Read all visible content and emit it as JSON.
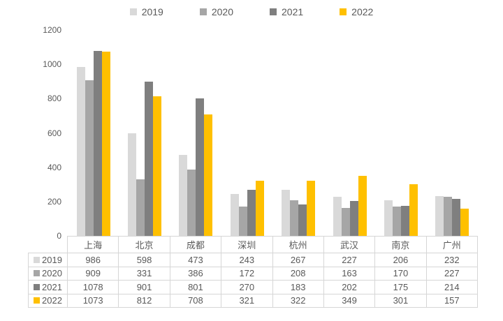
{
  "chart_data": {
    "type": "bar",
    "title": "",
    "categories": [
      "上海",
      "北京",
      "成都",
      "深圳",
      "杭州",
      "武汉",
      "南京",
      "广州"
    ],
    "series": [
      {
        "name": "2019",
        "color": "#d9d9d9",
        "values": [
          986,
          598,
          473,
          243,
          267,
          227,
          206,
          232
        ]
      },
      {
        "name": "2020",
        "color": "#a6a6a6",
        "values": [
          909,
          331,
          386,
          172,
          208,
          163,
          170,
          227
        ]
      },
      {
        "name": "2021",
        "color": "#7f7f7f",
        "values": [
          1078,
          901,
          801,
          270,
          183,
          202,
          175,
          214
        ]
      },
      {
        "name": "2022",
        "color": "#ffc000",
        "values": [
          1073,
          812,
          708,
          321,
          322,
          349,
          301,
          157
        ]
      }
    ],
    "ylim": [
      0,
      1200
    ],
    "yticks": [
      0,
      200,
      400,
      600,
      800,
      1000,
      1200
    ],
    "grid": false,
    "legend_position": "top",
    "data_table_with_legend_keys": true
  },
  "styles": {
    "text_color": "#595959",
    "border_color": "#d6d6d6",
    "background": "#ffffff"
  }
}
